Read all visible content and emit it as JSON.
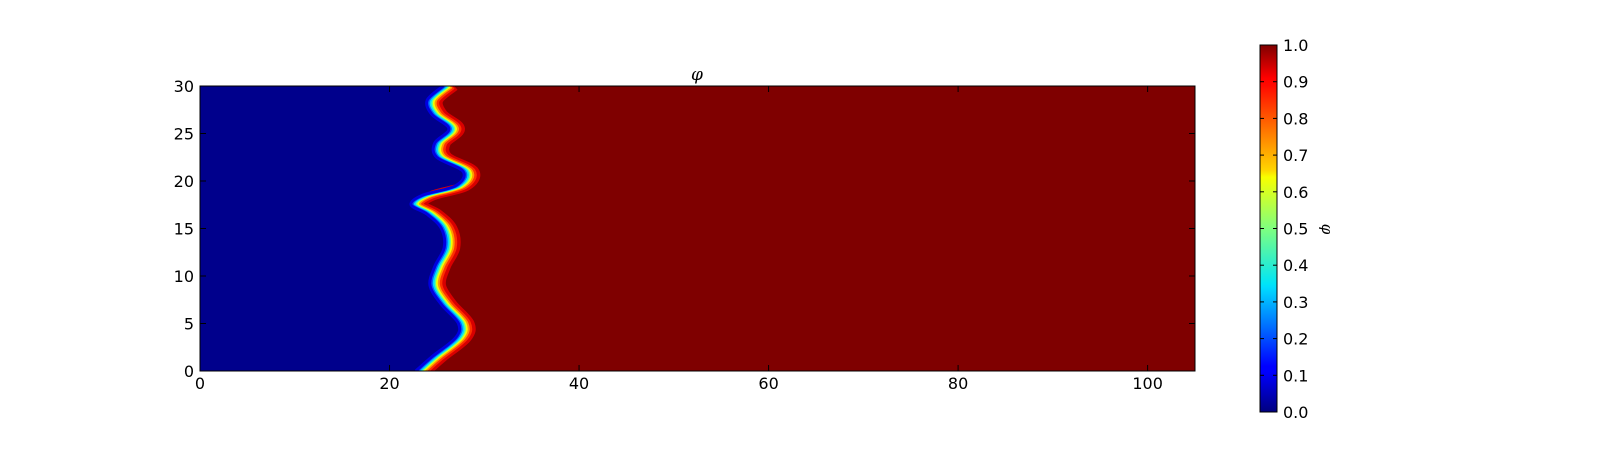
{
  "chart_data": {
    "type": "heatmap",
    "title": "φ",
    "xlabel": "",
    "ylabel": "",
    "xlim": [
      0,
      105
    ],
    "ylim": [
      0,
      30
    ],
    "x_ticks": [
      0,
      20,
      40,
      60,
      80,
      100
    ],
    "y_ticks": [
      0,
      5,
      10,
      15,
      20,
      25,
      30
    ],
    "colormap": "jet",
    "value_range": [
      0.0,
      1.0
    ],
    "colorbar": {
      "label": "φ",
      "ticks": [
        "0.0",
        "0.1",
        "0.2",
        "0.3",
        "0.4",
        "0.5",
        "0.6",
        "0.7",
        "0.8",
        "0.9",
        "1.0"
      ]
    },
    "field": {
      "left_value": 0.0,
      "right_value": 1.0,
      "interface_x_at_y": [
        {
          "y": 0,
          "x": 23.3
        },
        {
          "y": 1.5,
          "x": 25.0
        },
        {
          "y": 3.5,
          "x": 27.5
        },
        {
          "y": 5,
          "x": 27.8
        },
        {
          "y": 7,
          "x": 26.0
        },
        {
          "y": 9,
          "x": 24.8
        },
        {
          "y": 11,
          "x": 25.3
        },
        {
          "y": 13,
          "x": 26.3
        },
        {
          "y": 15,
          "x": 26.0
        },
        {
          "y": 16.5,
          "x": 24.5
        },
        {
          "y": 17.5,
          "x": 22.8
        },
        {
          "y": 18.5,
          "x": 24.0
        },
        {
          "y": 19.5,
          "x": 27.5
        },
        {
          "y": 21,
          "x": 28.3
        },
        {
          "y": 22.5,
          "x": 25.5
        },
        {
          "y": 24,
          "x": 25.3
        },
        {
          "y": 25.5,
          "x": 26.8
        },
        {
          "y": 27,
          "x": 25.0
        },
        {
          "y": 28.5,
          "x": 24.5
        },
        {
          "y": 30,
          "x": 26.2
        }
      ]
    }
  }
}
